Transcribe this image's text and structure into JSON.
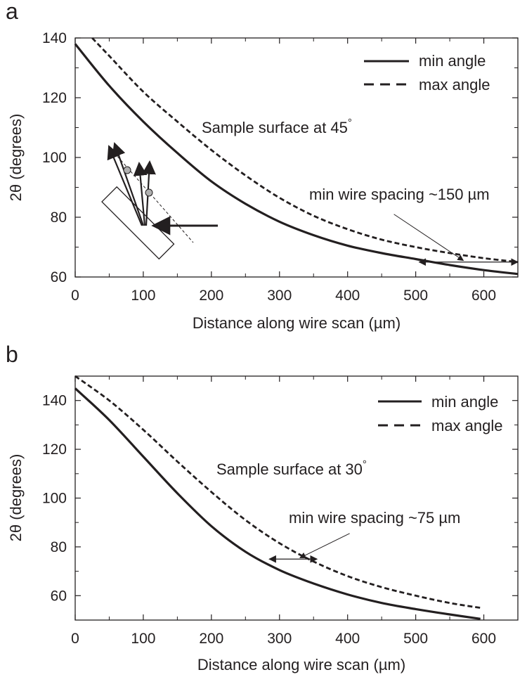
{
  "chart_data": [
    {
      "panel_label": "a",
      "type": "line",
      "xlabel": "Distance along wire scan (µm)",
      "ylabel": "2θ (degrees)",
      "xlim": [
        0,
        650
      ],
      "ylim": [
        60,
        140
      ],
      "xticks": [
        0,
        100,
        200,
        300,
        400,
        500,
        600
      ],
      "yticks": [
        60,
        80,
        100,
        120,
        140
      ],
      "grid": false,
      "legend_position": "top-right",
      "series": [
        {
          "name": "min angle",
          "style": "solid",
          "x": [
            0,
            50,
            100,
            150,
            200,
            250,
            300,
            350,
            400,
            450,
            500,
            550,
            600,
            650
          ],
          "y": [
            138,
            124,
            112,
            101.5,
            92,
            84.5,
            78.5,
            74,
            70.5,
            68,
            66,
            64,
            62.3,
            61
          ]
        },
        {
          "name": "max angle",
          "style": "dashed",
          "x": [
            25,
            50,
            100,
            150,
            200,
            250,
            300,
            350,
            400,
            450,
            500,
            550,
            600,
            650
          ],
          "y": [
            140,
            134,
            122,
            112,
            102.5,
            94,
            86.5,
            80.5,
            76,
            72.5,
            70,
            68,
            66.3,
            65
          ]
        }
      ],
      "annotations": [
        {
          "text": "Sample surface at 45",
          "degree": "°",
          "x": 425,
          "y": 124
        },
        {
          "text": "min wire spacing ~150 µm",
          "x": 432,
          "y": 87.5
        }
      ],
      "spacing_marker": {
        "x_from": 505,
        "x_to": 650,
        "y": 65,
        "pointer_from": [
          468,
          81
        ],
        "pointer_to": [
          570,
          65.5
        ]
      }
    },
    {
      "panel_label": "b",
      "type": "line",
      "xlabel": "Distance along wire scan (µm)",
      "ylabel": "2θ (degrees)",
      "xlim": [
        0,
        650
      ],
      "ylim": [
        50,
        150
      ],
      "xticks": [
        0,
        100,
        200,
        300,
        400,
        500,
        600
      ],
      "yticks": [
        60,
        80,
        100,
        120,
        140
      ],
      "grid": false,
      "legend_position": "top-right",
      "series": [
        {
          "name": "min angle",
          "style": "solid",
          "x": [
            0,
            50,
            100,
            150,
            200,
            250,
            300,
            350,
            400,
            450,
            500,
            550,
            595
          ],
          "y": [
            145,
            132,
            117,
            102,
            88.5,
            78,
            70.5,
            65,
            60.5,
            57,
            54.5,
            52.3,
            50.5
          ]
        },
        {
          "name": "max angle",
          "style": "dashed",
          "x": [
            0,
            50,
            100,
            150,
            200,
            250,
            300,
            350,
            400,
            450,
            500,
            550,
            595
          ],
          "y": [
            150,
            140,
            128,
            115,
            102.5,
            91,
            81.5,
            74,
            68,
            63.5,
            60,
            57,
            55
          ]
        }
      ],
      "annotations": [
        {
          "text": "Sample surface at 30",
          "degree": "°",
          "x": 325,
          "y": 119
        },
        {
          "text": "min wire spacing ~75 µm",
          "x": 412,
          "y": 90
        }
      ],
      "spacing_marker": {
        "x_from": 285,
        "x_to": 355,
        "y": 75,
        "pointer_from": [
          403,
          85.5
        ],
        "pointer_to": [
          330,
          75.5
        ]
      }
    }
  ]
}
